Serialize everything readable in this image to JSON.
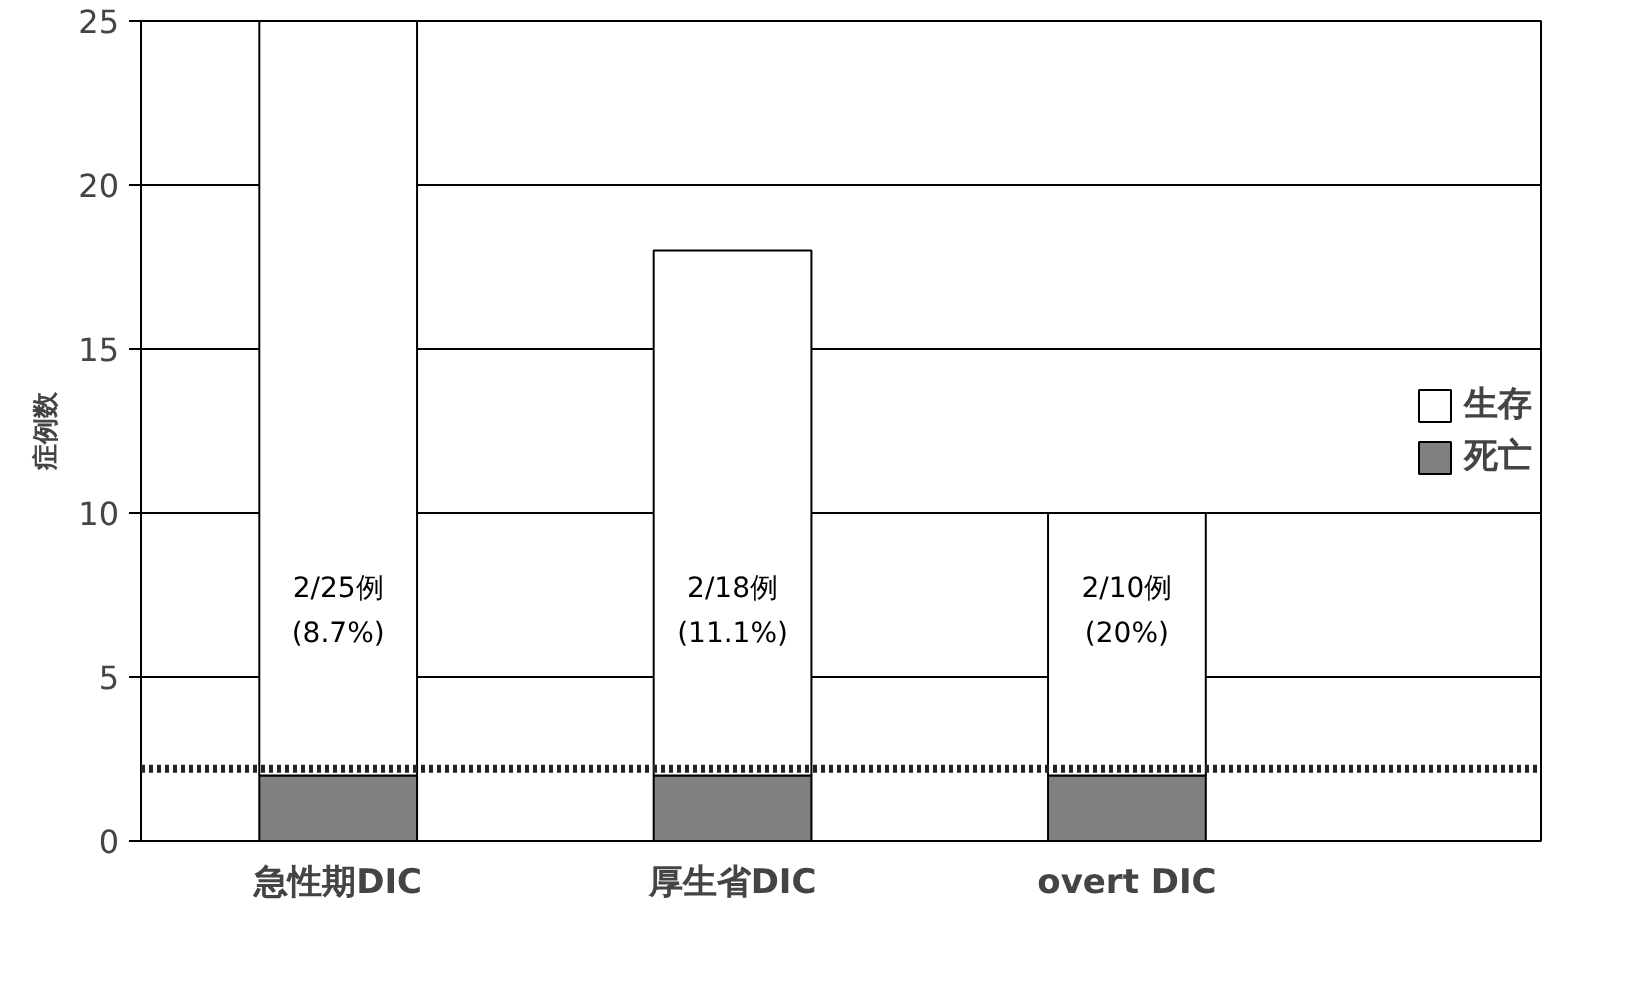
{
  "chart_data": {
    "type": "bar",
    "stacked": true,
    "ylabel": "症例数",
    "categories": [
      "急性期DIC",
      "厚生省DIC",
      "overt DIC"
    ],
    "series": [
      {
        "name": "死亡",
        "color": "#808080",
        "values": [
          2,
          2,
          2
        ]
      },
      {
        "name": "生存",
        "color": "#ffffff",
        "values": [
          23,
          16,
          8
        ]
      }
    ],
    "ylim": [
      0,
      25
    ],
    "yticks": [
      0,
      5,
      10,
      15,
      20,
      25
    ],
    "grid": "y",
    "legend": "right",
    "ref_lines": [
      {
        "axis": "y",
        "value": 2.2,
        "label": null,
        "line_style": "dotted",
        "color": "#222222"
      }
    ],
    "annotations": [
      "2/25例\n(8.7%)",
      "2/18例\n(11.1%)",
      "2/10例\n(20%)"
    ]
  }
}
